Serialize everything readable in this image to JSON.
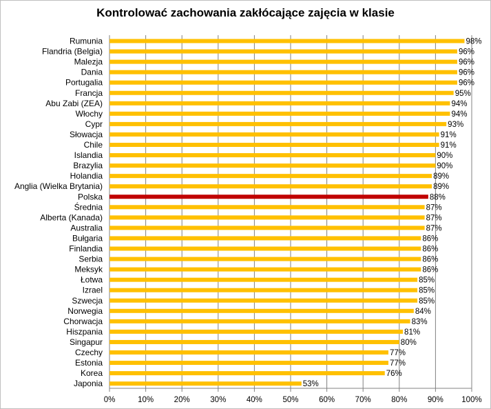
{
  "chart_data": {
    "type": "bar",
    "orientation": "horizontal",
    "title": "Kontrolować zachowania zakłócające zajęcia w klasie",
    "categories": [
      "Rumunia",
      "Flandria (Belgia)",
      "Malezja",
      "Dania",
      "Portugalia",
      "Francja",
      "Abu Zabi (ZEA)",
      "Włochy",
      "Cypr",
      "Słowacja",
      "Chile",
      "Islandia",
      "Brazylia",
      "Holandia",
      "Anglia (Wielka Brytania)",
      "Polska",
      "Średnia",
      "Alberta (Kanada)",
      "Australia",
      "Bułgaria",
      "Finlandia",
      "Serbia",
      "Meksyk",
      "Łotwa",
      "Izrael",
      "Szwecja",
      "Norwegia",
      "Chorwacja",
      "Hiszpania",
      "Singapur",
      "Czechy",
      "Estonia",
      "Korea",
      "Japonia"
    ],
    "values": [
      98,
      96,
      96,
      96,
      96,
      95,
      94,
      94,
      93,
      91,
      91,
      90,
      90,
      89,
      89,
      88,
      87,
      87,
      87,
      86,
      86,
      86,
      86,
      85,
      85,
      85,
      84,
      83,
      81,
      80,
      77,
      77,
      76,
      53
    ],
    "value_labels": [
      "98%",
      "96%",
      "96%",
      "96%",
      "96%",
      "95%",
      "94%",
      "94%",
      "93%",
      "91%",
      "91%",
      "90%",
      "90%",
      "89%",
      "89%",
      "88%",
      "87%",
      "87%",
      "87%",
      "86%",
      "86%",
      "86%",
      "86%",
      "85%",
      "85%",
      "85%",
      "84%",
      "83%",
      "81%",
      "80%",
      "77%",
      "77%",
      "76%",
      "53%"
    ],
    "highlight_category": "Polska",
    "xlim": [
      0,
      100
    ],
    "x_ticks": [
      "0%",
      "10%",
      "20%",
      "30%",
      "40%",
      "50%",
      "60%",
      "70%",
      "80%",
      "90%",
      "100%"
    ],
    "grid": "vertical",
    "legend": "none",
    "colors": {
      "bar": "#ffc000",
      "highlight": "#c00000",
      "grid": "#808080"
    }
  }
}
